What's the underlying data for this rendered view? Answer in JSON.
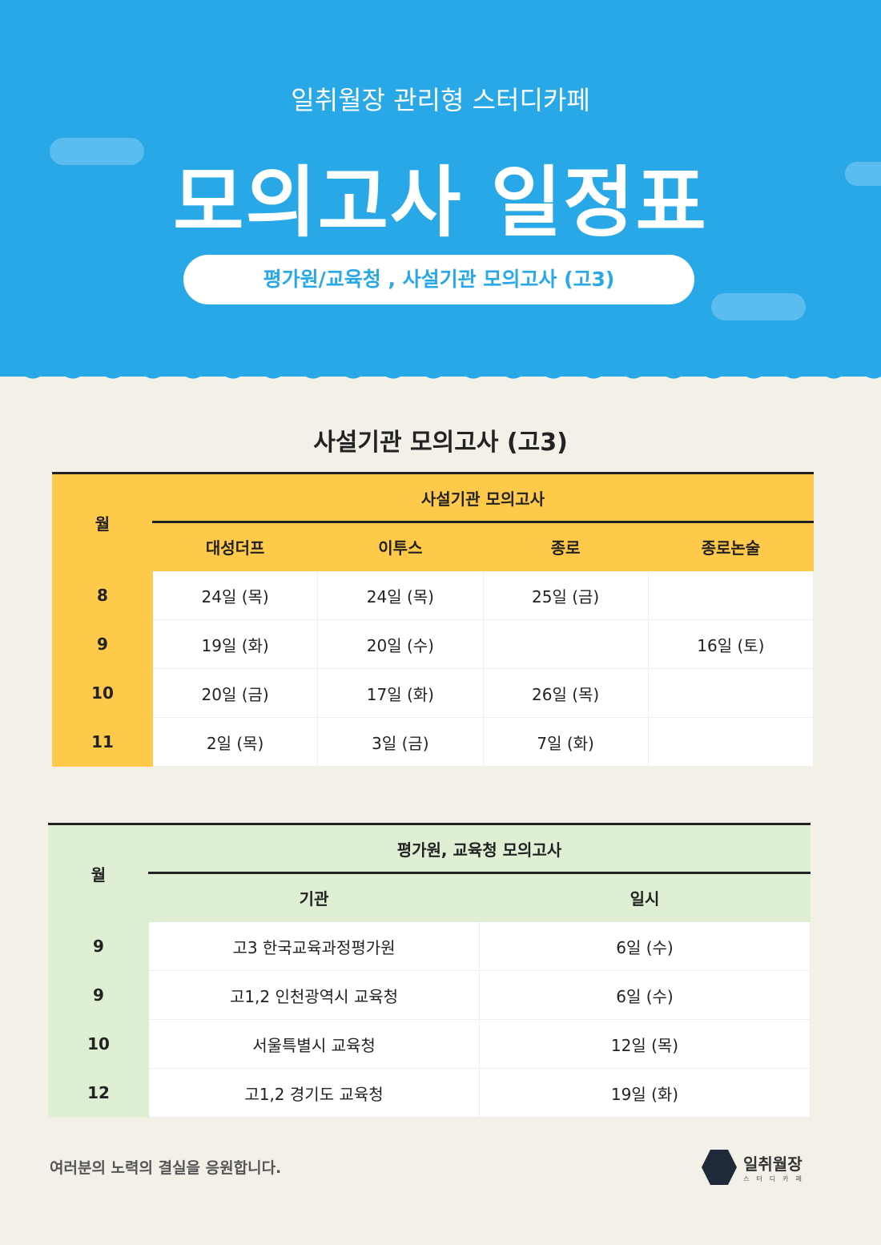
{
  "header": {
    "subtitle": "일취월장 관리형 스터디카페",
    "title": "모의고사 일정표",
    "pill": "평가원/교육청 , 사설기관 모의고사 (고3)"
  },
  "colors": {
    "hero": "#29a8e8",
    "background": "#f3f0e8",
    "private_header": "#ffc94a",
    "public_header": "#deefd4"
  },
  "private": {
    "section_title": "사설기관 모의고사 (고3)",
    "month_label": "월",
    "group_label": "사설기관 모의고사",
    "columns": [
      "대성더프",
      "이투스",
      "종로",
      "종로논술"
    ],
    "rows": [
      {
        "month": "8",
        "cells": [
          "24일 (목)",
          "24일 (목)",
          "25일 (금)",
          ""
        ]
      },
      {
        "month": "9",
        "cells": [
          "19일 (화)",
          "20일 (수)",
          "",
          "16일 (토)"
        ]
      },
      {
        "month": "10",
        "cells": [
          "20일 (금)",
          "17일 (화)",
          "26일 (목)",
          ""
        ]
      },
      {
        "month": "11",
        "cells": [
          "2일 (목)",
          "3일 (금)",
          "7일 (화)",
          ""
        ]
      }
    ]
  },
  "public": {
    "month_label": "월",
    "group_label": "평가원, 교육청 모의고사",
    "columns": [
      "기관",
      "일시"
    ],
    "rows": [
      {
        "month": "9",
        "cells": [
          "고3 한국교육과정평가원",
          "6일 (수)"
        ]
      },
      {
        "month": "9",
        "cells": [
          "고1,2 인천광역시 교육청",
          "6일 (수)"
        ]
      },
      {
        "month": "10",
        "cells": [
          "서울특별시 교육청",
          "12일 (목)"
        ]
      },
      {
        "month": "12",
        "cells": [
          "고1,2 경기도 교육청",
          "19일 (화)"
        ]
      }
    ]
  },
  "footer": {
    "message": "여러분의 노력의 결실을 응원합니다.",
    "logo_name": "일취월장",
    "logo_sub": "스터디카페"
  }
}
